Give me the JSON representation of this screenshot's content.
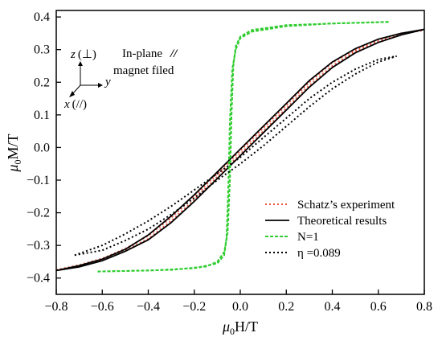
{
  "chart_data": {
    "type": "line",
    "xlabel_sub": "0",
    "xlabel_prefix": "μ",
    "xlabel_suffix": "H/T",
    "ylabel_prefix": "μ",
    "ylabel_sub": "0",
    "ylabel_suffix": "M/T",
    "xlim": [
      -0.8,
      0.8
    ],
    "ylim": [
      -0.45,
      0.42
    ],
    "xticks": [
      -0.8,
      -0.6,
      -0.4,
      -0.2,
      0.0,
      0.2,
      0.4,
      0.6,
      0.8
    ],
    "xtick_labels": [
      "−0.8",
      "−0.6",
      "−0.4",
      "−0.2",
      "0.0",
      "0.2",
      "0.4",
      "0.6",
      "0.8"
    ],
    "yticks": [
      -0.4,
      -0.3,
      -0.2,
      -0.1,
      0.0,
      0.1,
      0.2,
      0.3,
      0.4
    ],
    "ytick_labels": [
      "−0.4",
      "−0.3",
      "−0.2",
      "−0.1",
      "0.0",
      "0.1",
      "0.2",
      "0.3",
      "0.4"
    ],
    "legend_position": "bottom-right",
    "series": [
      {
        "name": "Schatz’s experiment",
        "color": "#e8503a",
        "style": "dotted",
        "upper": {
          "x": [
            -0.8,
            -0.7,
            -0.6,
            -0.5,
            -0.4,
            -0.3,
            -0.2,
            -0.1,
            -0.05,
            0.0,
            0.1,
            0.2,
            0.3,
            0.4,
            0.5,
            0.6,
            0.7,
            0.8
          ],
          "y": [
            -0.375,
            -0.36,
            -0.34,
            -0.31,
            -0.27,
            -0.215,
            -0.15,
            -0.08,
            -0.045,
            -0.01,
            0.06,
            0.13,
            0.2,
            0.26,
            0.3,
            0.33,
            0.35,
            0.36
          ]
        },
        "lower": {
          "x": [
            -0.8,
            -0.7,
            -0.6,
            -0.5,
            -0.4,
            -0.3,
            -0.2,
            -0.1,
            0.0,
            0.05,
            0.1,
            0.2,
            0.3,
            0.4,
            0.5,
            0.6,
            0.7,
            0.8
          ],
          "y": [
            -0.375,
            -0.365,
            -0.345,
            -0.315,
            -0.28,
            -0.225,
            -0.16,
            -0.09,
            -0.02,
            0.015,
            0.05,
            0.12,
            0.19,
            0.25,
            0.295,
            0.325,
            0.348,
            0.36
          ]
        }
      },
      {
        "name": "Theoretical  results",
        "color": "#000000",
        "style": "solid",
        "upper": {
          "x": [
            -0.8,
            -0.7,
            -0.6,
            -0.5,
            -0.4,
            -0.3,
            -0.2,
            -0.1,
            -0.05,
            0.0,
            0.1,
            0.2,
            0.3,
            0.4,
            0.5,
            0.6,
            0.7,
            0.8
          ],
          "y": [
            -0.377,
            -0.362,
            -0.342,
            -0.312,
            -0.268,
            -0.21,
            -0.145,
            -0.075,
            -0.04,
            -0.005,
            0.065,
            0.135,
            0.205,
            0.262,
            0.303,
            0.332,
            0.35,
            0.362
          ]
        },
        "lower": {
          "x": [
            -0.8,
            -0.7,
            -0.6,
            -0.5,
            -0.4,
            -0.3,
            -0.2,
            -0.1,
            0.0,
            0.05,
            0.1,
            0.2,
            0.3,
            0.4,
            0.5,
            0.6,
            0.7,
            0.8
          ],
          "y": [
            -0.377,
            -0.366,
            -0.347,
            -0.318,
            -0.283,
            -0.23,
            -0.165,
            -0.095,
            -0.025,
            0.01,
            0.045,
            0.115,
            0.185,
            0.245,
            0.29,
            0.322,
            0.345,
            0.362
          ]
        }
      },
      {
        "name": "N=1",
        "color": "#2ecc2e",
        "style": "dashed",
        "upper": {
          "x": [
            -0.62,
            -0.3,
            -0.15,
            -0.1,
            -0.07,
            -0.055,
            -0.045,
            -0.038,
            -0.03,
            -0.02,
            0.0,
            0.05,
            0.2,
            0.4,
            0.65
          ],
          "y": [
            -0.38,
            -0.375,
            -0.365,
            -0.35,
            -0.32,
            -0.26,
            -0.1,
            0.1,
            0.25,
            0.31,
            0.34,
            0.36,
            0.375,
            0.38,
            0.385
          ]
        },
        "lower": {
          "x": [
            -0.62,
            -0.4,
            -0.2,
            -0.1,
            -0.07,
            -0.06,
            -0.052,
            -0.045,
            -0.035,
            -0.02,
            0.0,
            0.05,
            0.2,
            0.4,
            0.65
          ],
          "y": [
            -0.38,
            -0.377,
            -0.37,
            -0.355,
            -0.33,
            -0.28,
            -0.12,
            0.08,
            0.24,
            0.3,
            0.335,
            0.355,
            0.372,
            0.38,
            0.385
          ]
        }
      },
      {
        "name": "η =0.089",
        "color": "#000000",
        "style": "dotted",
        "upper": {
          "x": [
            -0.72,
            -0.6,
            -0.5,
            -0.4,
            -0.3,
            -0.2,
            -0.1,
            0.0,
            0.1,
            0.2,
            0.3,
            0.4,
            0.5,
            0.6,
            0.68
          ],
          "y": [
            -0.33,
            -0.3,
            -0.265,
            -0.225,
            -0.18,
            -0.13,
            -0.08,
            -0.03,
            0.03,
            0.09,
            0.15,
            0.2,
            0.24,
            0.27,
            0.28
          ]
        },
        "lower": {
          "x": [
            -0.72,
            -0.6,
            -0.5,
            -0.4,
            -0.3,
            -0.2,
            -0.1,
            0.0,
            0.1,
            0.2,
            0.3,
            0.4,
            0.5,
            0.6,
            0.68
          ],
          "y": [
            -0.33,
            -0.315,
            -0.285,
            -0.25,
            -0.205,
            -0.155,
            -0.1,
            -0.05,
            0.005,
            0.065,
            0.125,
            0.18,
            0.225,
            0.262,
            0.28
          ]
        }
      }
    ],
    "annotation": {
      "axis_z": "z",
      "axis_z_sym": "(⊥)",
      "axis_y": "y",
      "axis_x": "x",
      "axis_x_sym": "(//)",
      "line1": "In-plane",
      "line1_sym": "//",
      "line2": "magnet filed"
    }
  }
}
